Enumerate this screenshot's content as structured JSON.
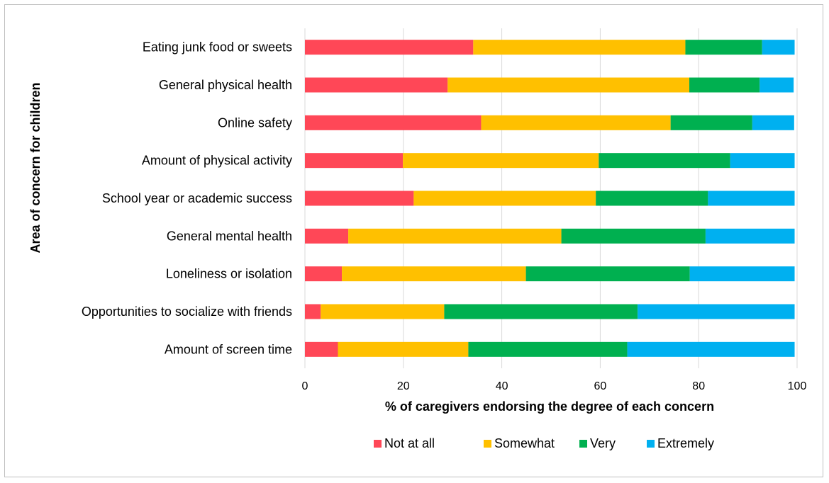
{
  "chart_data": {
    "type": "bar",
    "orientation": "horizontal",
    "stacked": true,
    "title": "",
    "xlabel": "% of caregivers endorsing the degree of each concern",
    "ylabel": "Area of concern for children",
    "xlim": [
      0,
      100
    ],
    "xticks": [
      0,
      20,
      40,
      60,
      80,
      100
    ],
    "grid": true,
    "legend_position": "bottom",
    "categories": [
      "Eating junk food or sweets",
      "General physical health",
      "Online safety",
      "Amount of physical activity",
      "School year or academic success",
      "General mental health",
      "Loneliness or isolation",
      "Opportunities to socialize with friends",
      "Amount of screen time"
    ],
    "series": [
      {
        "name": "Not at all",
        "color": "#FF4757",
        "values": [
          34.2,
          29.0,
          35.8,
          19.9,
          22.1,
          8.8,
          7.5,
          3.2,
          6.7
        ]
      },
      {
        "name": "Somewhat",
        "color": "#FFC000",
        "values": [
          43.1,
          49.1,
          38.5,
          39.8,
          37.0,
          43.3,
          37.4,
          25.1,
          26.5
        ]
      },
      {
        "name": "Very",
        "color": "#00B050",
        "values": [
          15.6,
          14.3,
          16.6,
          26.7,
          22.8,
          29.3,
          33.3,
          39.3,
          32.3
        ]
      },
      {
        "name": "Extremely",
        "color": "#00B0F0",
        "values": [
          6.6,
          6.9,
          8.5,
          13.1,
          17.6,
          18.1,
          21.3,
          31.9,
          34.0
        ]
      }
    ]
  }
}
